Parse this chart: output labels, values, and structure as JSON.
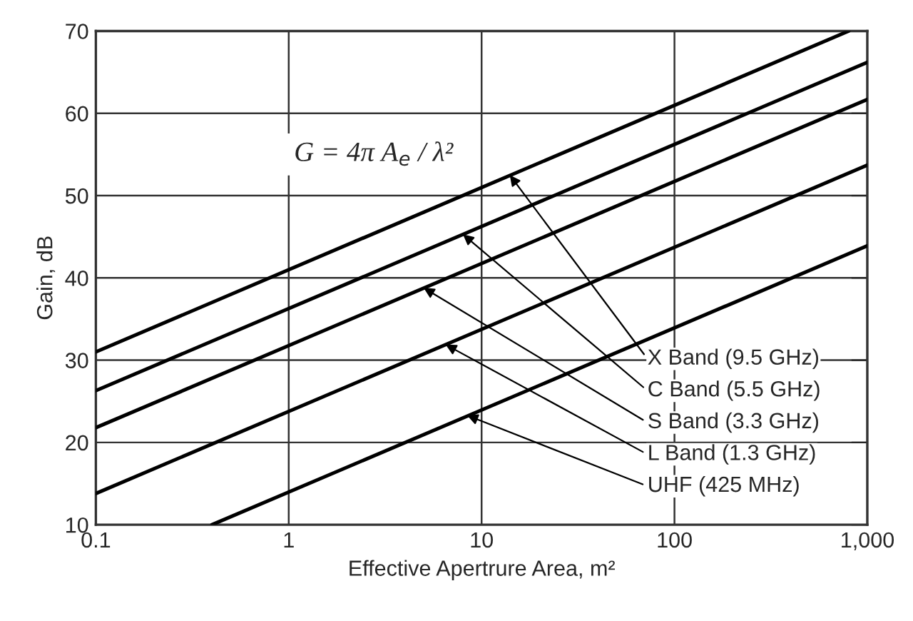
{
  "chart_data": {
    "type": "line",
    "xlabel": "Effective Apertrure Area, m²",
    "ylabel": "Gain, dB",
    "log": "x",
    "grid": true,
    "marker": "none",
    "line_style": "solid",
    "xlim": [
      0.1,
      1000
    ],
    "xticks": [
      0.1,
      1,
      10,
      100,
      {
        "value": 1000,
        "label": "1,000"
      }
    ],
    "ylim": [
      10,
      70
    ],
    "yticks": [
      10,
      20,
      30,
      40,
      50,
      60,
      70
    ],
    "series": [
      {
        "color": "#000000",
        "x": [
          0.1,
          800
        ],
        "values": [
          31,
          70
        ]
      },
      {
        "color": "#000000",
        "x": [
          0.1,
          1000
        ],
        "values": [
          26.3,
          66.2
        ]
      },
      {
        "color": "#000000",
        "x": [
          0.1,
          1000
        ],
        "values": [
          21.8,
          61.7
        ]
      },
      {
        "color": "#000000",
        "x": [
          0.1,
          1000
        ],
        "values": [
          13.8,
          53.7
        ]
      },
      {
        "color": "#000000",
        "x": [
          0.4,
          1000
        ],
        "values": [
          10,
          43.9
        ]
      }
    ],
    "annotations": [
      {
        "text": "X Band (9.5 GHz)",
        "x": 14,
        "y": 52.5
      },
      {
        "text": "C Band (5.5 GHz)",
        "x": 8,
        "y": 45.3
      },
      {
        "text": "S Band (3.3 GHz)",
        "x": 5,
        "y": 38.8
      },
      {
        "text": "L Band (1.3 GHz)",
        "x": 6.5,
        "y": 31.9
      },
      {
        "text": "UHF (425 MHz)",
        "x": 8.4,
        "y": 23.3
      },
      "G = 4π A$_{e}$ / λ²"
    ]
  }
}
